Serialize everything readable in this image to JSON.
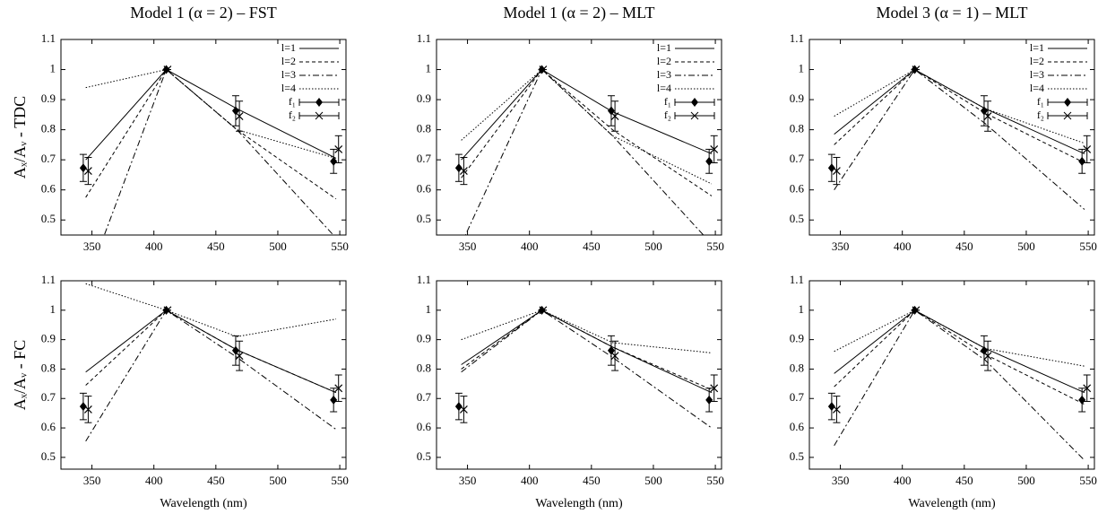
{
  "chart_data": [
    {
      "type": "line",
      "title": "Model 1 (α = 2) – FST",
      "ylabel": "Aₓ/Aᵥ - TDC",
      "xlim": [
        325,
        555
      ],
      "ylim": [
        0.45,
        1.1
      ],
      "xticks": [
        350,
        400,
        450,
        500,
        550
      ],
      "yticks": [
        0.5,
        0.6,
        0.7,
        0.8,
        0.9,
        1,
        1.1
      ],
      "legend": "upper right",
      "series": [
        {
          "name": "l=1",
          "style": "solid",
          "x": [
            345,
            410,
            467,
            547
          ],
          "values": [
            0.7,
            1,
            0.87,
            0.705
          ]
        },
        {
          "name": "l=2",
          "style": "dashed",
          "x": [
            345,
            410,
            467,
            547
          ],
          "values": [
            0.575,
            1,
            0.8,
            0.57
          ]
        },
        {
          "name": "l=3",
          "style": "dashdot",
          "x": [
            345,
            410,
            467,
            547
          ],
          "values": [
            0.285,
            1,
            0.8,
            0.44
          ]
        },
        {
          "name": "l=4",
          "style": "dotted",
          "x": [
            345,
            410,
            467,
            547
          ],
          "values": [
            0.94,
            1,
            0.8,
            0.705
          ]
        },
        {
          "name": "f₁",
          "type": "errorbar",
          "marker": "diamond",
          "x": [
            343,
            410,
            466,
            545
          ],
          "values": [
            0.673,
            1,
            0.863,
            0.695
          ],
          "errors": [
            0.045,
            0,
            0.05,
            0.04
          ]
        },
        {
          "name": "f₂",
          "type": "errorbar",
          "marker": "cross",
          "x": [
            347,
            411,
            469,
            549
          ],
          "values": [
            0.663,
            1,
            0.845,
            0.735
          ],
          "errors": [
            0.045,
            0,
            0.05,
            0.045
          ]
        }
      ]
    },
    {
      "type": "line",
      "title": "Model 1 (α = 2) – MLT",
      "xlim": [
        325,
        555
      ],
      "ylim": [
        0.45,
        1.1
      ],
      "xticks": [
        350,
        400,
        450,
        500,
        550
      ],
      "yticks": [
        0.5,
        0.6,
        0.7,
        0.8,
        0.9,
        1,
        1.1
      ],
      "legend": "upper right",
      "series": [
        {
          "name": "l=1",
          "style": "solid",
          "x": [
            345,
            410,
            467,
            547
          ],
          "values": [
            0.7,
            1,
            0.86,
            0.72
          ]
        },
        {
          "name": "l=2",
          "style": "dashed",
          "x": [
            345,
            410,
            467,
            547
          ],
          "values": [
            0.64,
            1,
            0.8,
            0.58
          ]
        },
        {
          "name": "l=3",
          "style": "dashdot",
          "x": [
            345,
            410,
            467,
            547
          ],
          "values": [
            0.42,
            1,
            0.78,
            0.42
          ]
        },
        {
          "name": "l=4",
          "style": "dotted",
          "x": [
            345,
            410,
            467,
            547
          ],
          "values": [
            0.765,
            1,
            0.78,
            0.62
          ]
        },
        {
          "name": "f₁",
          "type": "errorbar",
          "marker": "diamond",
          "x": [
            343,
            410,
            466,
            545
          ],
          "values": [
            0.673,
            1,
            0.863,
            0.695
          ],
          "errors": [
            0.045,
            0,
            0.05,
            0.04
          ]
        },
        {
          "name": "f₂",
          "type": "errorbar",
          "marker": "cross",
          "x": [
            347,
            411,
            469,
            549
          ],
          "values": [
            0.663,
            1,
            0.845,
            0.735
          ],
          "errors": [
            0.045,
            0,
            0.05,
            0.045
          ]
        }
      ]
    },
    {
      "type": "line",
      "title": "Model 3 (α = 1) – MLT",
      "xlim": [
        325,
        555
      ],
      "ylim": [
        0.45,
        1.1
      ],
      "xticks": [
        350,
        400,
        450,
        500,
        550
      ],
      "yticks": [
        0.5,
        0.6,
        0.7,
        0.8,
        0.9,
        1,
        1.1
      ],
      "legend": "upper right",
      "series": [
        {
          "name": "l=1",
          "style": "solid",
          "x": [
            345,
            410,
            467,
            547
          ],
          "values": [
            0.785,
            1,
            0.87,
            0.72
          ]
        },
        {
          "name": "l=2",
          "style": "dashed",
          "x": [
            345,
            410,
            467,
            547
          ],
          "values": [
            0.75,
            1,
            0.855,
            0.69
          ]
        },
        {
          "name": "l=3",
          "style": "dashdot",
          "x": [
            345,
            410,
            467,
            547
          ],
          "values": [
            0.6,
            1,
            0.82,
            0.535
          ]
        },
        {
          "name": "l=4",
          "style": "dotted",
          "x": [
            345,
            410,
            467,
            547
          ],
          "values": [
            0.845,
            1,
            0.87,
            0.755
          ]
        },
        {
          "name": "f₁",
          "type": "errorbar",
          "marker": "diamond",
          "x": [
            343,
            410,
            466,
            545
          ],
          "values": [
            0.673,
            1,
            0.863,
            0.695
          ],
          "errors": [
            0.045,
            0,
            0.05,
            0.04
          ]
        },
        {
          "name": "f₂",
          "type": "errorbar",
          "marker": "cross",
          "x": [
            347,
            411,
            469,
            549
          ],
          "values": [
            0.663,
            1,
            0.845,
            0.735
          ],
          "errors": [
            0.045,
            0,
            0.05,
            0.045
          ]
        }
      ]
    },
    {
      "type": "line",
      "ylabel": "Aₓ/Aᵥ  -  FC",
      "xlabel": "Wavelength (nm)",
      "xlim": [
        325,
        555
      ],
      "ylim": [
        0.46,
        1.1
      ],
      "xticks": [
        350,
        400,
        450,
        500,
        550
      ],
      "yticks": [
        0.5,
        0.6,
        0.7,
        0.8,
        0.9,
        1,
        1.1
      ],
      "series": [
        {
          "style": "solid",
          "x": [
            345,
            410,
            467,
            547
          ],
          "values": [
            0.79,
            1,
            0.865,
            0.72
          ]
        },
        {
          "style": "dashed",
          "x": [
            345,
            410,
            467,
            547
          ],
          "values": [
            0.745,
            1,
            0.865,
            0.72
          ]
        },
        {
          "style": "dashdot",
          "x": [
            345,
            410,
            467,
            547
          ],
          "values": [
            0.555,
            1,
            0.84,
            0.595
          ]
        },
        {
          "style": "dotted",
          "x": [
            345,
            410,
            467,
            547
          ],
          "values": [
            1.09,
            1,
            0.91,
            0.97
          ]
        },
        {
          "type": "errorbar",
          "marker": "diamond",
          "x": [
            343,
            410,
            466,
            545
          ],
          "values": [
            0.673,
            1,
            0.863,
            0.695
          ],
          "errors": [
            0.045,
            0,
            0.05,
            0.04
          ]
        },
        {
          "type": "errorbar",
          "marker": "cross",
          "x": [
            347,
            411,
            469,
            549
          ],
          "values": [
            0.663,
            1,
            0.845,
            0.735
          ],
          "errors": [
            0.045,
            0,
            0.05,
            0.045
          ]
        }
      ]
    },
    {
      "type": "line",
      "xlabel": "Wavelength (nm)",
      "xlim": [
        325,
        555
      ],
      "ylim": [
        0.46,
        1.1
      ],
      "xticks": [
        350,
        400,
        450,
        500,
        550
      ],
      "yticks": [
        0.5,
        0.6,
        0.7,
        0.8,
        0.9,
        1,
        1.1
      ],
      "series": [
        {
          "style": "solid",
          "x": [
            345,
            410,
            467,
            547
          ],
          "values": [
            0.815,
            1,
            0.875,
            0.72
          ]
        },
        {
          "style": "dashed",
          "x": [
            345,
            410,
            467,
            547
          ],
          "values": [
            0.8,
            1,
            0.875,
            0.73
          ]
        },
        {
          "style": "dashdot",
          "x": [
            345,
            410,
            467,
            547
          ],
          "values": [
            0.79,
            1,
            0.84,
            0.6
          ]
        },
        {
          "style": "dotted",
          "x": [
            345,
            410,
            467,
            547
          ],
          "values": [
            0.9,
            1,
            0.89,
            0.855
          ]
        },
        {
          "type": "errorbar",
          "marker": "diamond",
          "x": [
            343,
            410,
            466,
            545
          ],
          "values": [
            0.673,
            1,
            0.863,
            0.695
          ],
          "errors": [
            0.045,
            0,
            0.05,
            0.04
          ]
        },
        {
          "type": "errorbar",
          "marker": "cross",
          "x": [
            347,
            411,
            469,
            549
          ],
          "values": [
            0.663,
            1,
            0.845,
            0.735
          ],
          "errors": [
            0.045,
            0,
            0.05,
            0.045
          ]
        }
      ]
    },
    {
      "type": "line",
      "xlabel": "Wavelength (nm)",
      "xlim": [
        325,
        555
      ],
      "ylim": [
        0.46,
        1.1
      ],
      "xticks": [
        350,
        400,
        450,
        500,
        550
      ],
      "yticks": [
        0.5,
        0.6,
        0.7,
        0.8,
        0.9,
        1,
        1.1
      ],
      "series": [
        {
          "style": "solid",
          "x": [
            345,
            410,
            467,
            547
          ],
          "values": [
            0.785,
            1,
            0.87,
            0.72
          ]
        },
        {
          "style": "dashed",
          "x": [
            345,
            410,
            467,
            547
          ],
          "values": [
            0.74,
            1,
            0.85,
            0.68
          ]
        },
        {
          "style": "dashdot",
          "x": [
            345,
            410,
            467,
            547
          ],
          "values": [
            0.54,
            1,
            0.83,
            0.49
          ]
        },
        {
          "style": "dotted",
          "x": [
            345,
            410,
            467,
            547
          ],
          "values": [
            0.86,
            1,
            0.87,
            0.81
          ]
        },
        {
          "type": "errorbar",
          "marker": "diamond",
          "x": [
            343,
            410,
            466,
            545
          ],
          "values": [
            0.673,
            1,
            0.863,
            0.695
          ],
          "errors": [
            0.045,
            0,
            0.05,
            0.04
          ]
        },
        {
          "type": "errorbar",
          "marker": "cross",
          "x": [
            347,
            411,
            469,
            549
          ],
          "values": [
            0.663,
            1,
            0.845,
            0.735
          ],
          "errors": [
            0.045,
            0,
            0.05,
            0.045
          ]
        }
      ]
    }
  ]
}
